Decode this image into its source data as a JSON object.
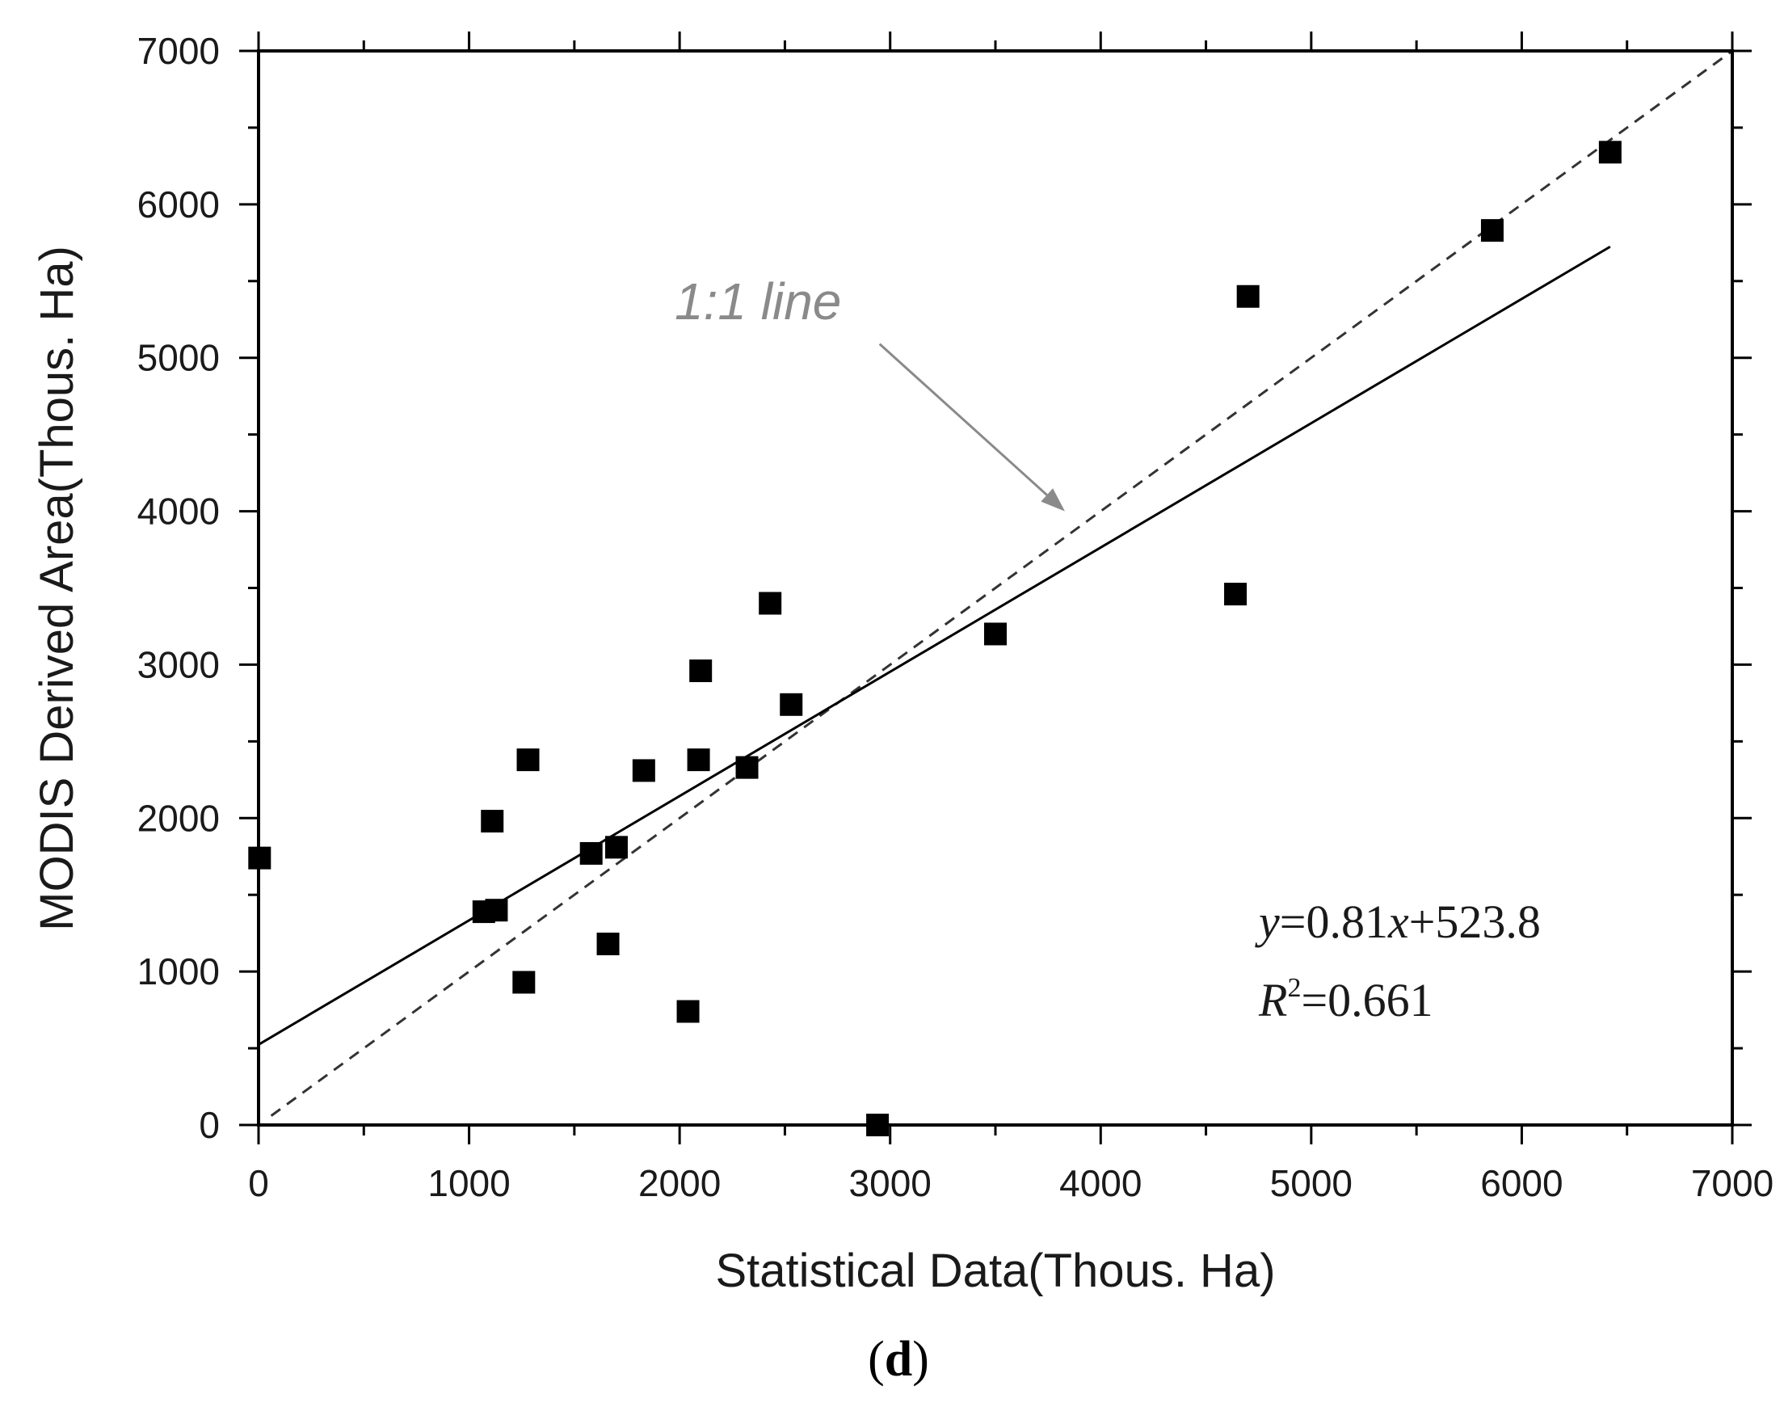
{
  "chart_data": {
    "type": "scatter",
    "title": "",
    "xlabel": "Statistical  Data(Thous. Ha)",
    "ylabel": "MODIS Derived Area(Thous. Ha)",
    "xlim": [
      0,
      7000
    ],
    "ylim": [
      0,
      7000
    ],
    "xticks": [
      "0",
      "1000",
      "2000",
      "3000",
      "4000",
      "5000",
      "6000",
      "7000"
    ],
    "yticks": [
      "0",
      "1000",
      "2000",
      "3000",
      "4000",
      "5000",
      "6000",
      "7000"
    ],
    "grid": false,
    "points": [
      {
        "x": 5,
        "y": 1740
      },
      {
        "x": 1070,
        "y": 1390
      },
      {
        "x": 1130,
        "y": 1400
      },
      {
        "x": 1110,
        "y": 1980
      },
      {
        "x": 1260,
        "y": 930
      },
      {
        "x": 1280,
        "y": 2380
      },
      {
        "x": 1580,
        "y": 1770
      },
      {
        "x": 1700,
        "y": 1810
      },
      {
        "x": 1660,
        "y": 1180
      },
      {
        "x": 1830,
        "y": 2310
      },
      {
        "x": 2040,
        "y": 740
      },
      {
        "x": 2090,
        "y": 2380
      },
      {
        "x": 2100,
        "y": 2960
      },
      {
        "x": 2320,
        "y": 2330
      },
      {
        "x": 2430,
        "y": 3400
      },
      {
        "x": 2530,
        "y": 2740
      },
      {
        "x": 2940,
        "y": 0
      },
      {
        "x": 3500,
        "y": 3200
      },
      {
        "x": 4640,
        "y": 3460
      },
      {
        "x": 4700,
        "y": 5400
      },
      {
        "x": 5860,
        "y": 5830
      },
      {
        "x": 6420,
        "y": 6340
      }
    ],
    "fit_line": {
      "slope": 0.81,
      "intercept": 523.8,
      "x_range": [
        0,
        6420
      ]
    },
    "identity_line": {
      "x_range": [
        60,
        7000
      ]
    },
    "annotation": {
      "text": "1:1 line",
      "arrow_tail": [
        2950,
        5090
      ],
      "arrow_head": [
        3830,
        4000
      ]
    },
    "equation": {
      "y_var": "y",
      "rest": "=0.81",
      "x_var": "x",
      "tail": "+523.8"
    },
    "r_squared": {
      "r": "R",
      "sup": "2",
      "value": "=0.661"
    },
    "panel_label": {
      "open": "(",
      "letter": "d",
      "close": ")"
    },
    "colors": {
      "marker": "#000000",
      "fit_line": "#000000",
      "identity_line": "#333333",
      "annotation": "#8a8a8a"
    }
  }
}
